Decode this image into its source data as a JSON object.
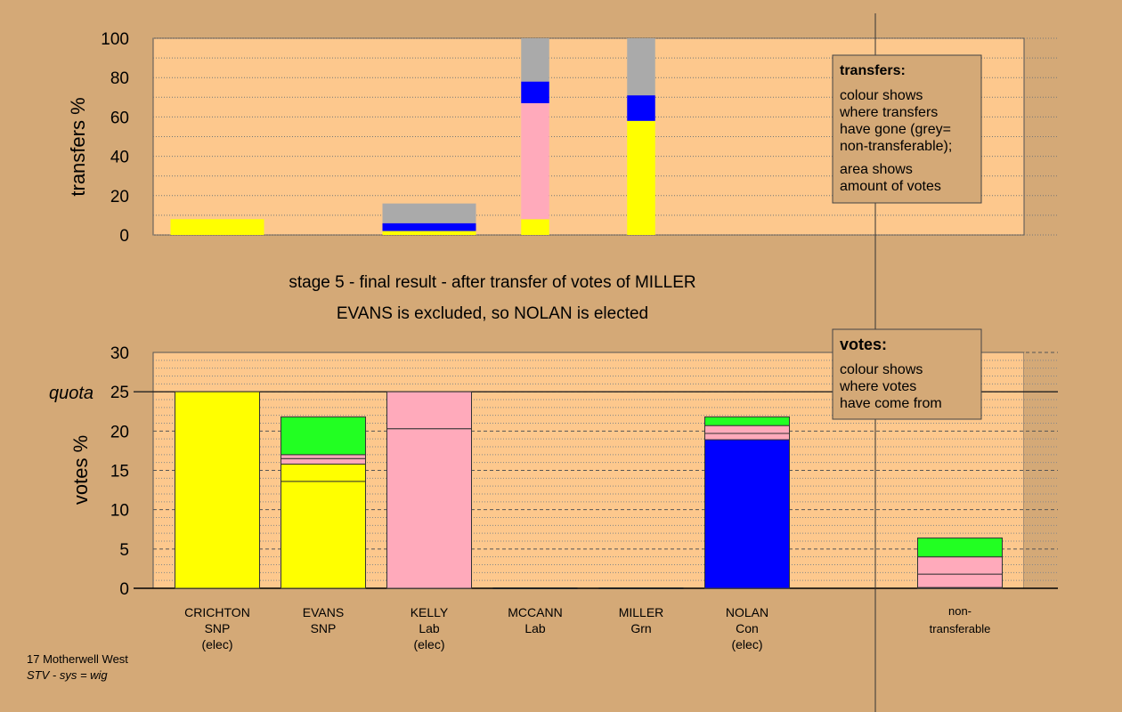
{
  "region": "17 Motherwell West",
  "method": "STV - sys = wig",
  "stage_title": "stage 5 - final result - after transfer of votes of MILLER",
  "outcome": "EVANS is excluded, so NOLAN is elected",
  "colors": {
    "background": "#d4a977",
    "plot_area": "#fdc88d",
    "SNP": "#ffff00",
    "Lab": "#ffaabb",
    "Con": "#0000ff",
    "Grn": "#22ff22",
    "non_transferable": "#aaaaaa"
  },
  "transfers_legend": {
    "title": "transfers:",
    "line1": [
      "colour shows",
      "where transfers",
      "have gone (grey=",
      "non-transferable);"
    ],
    "line2": [
      "area shows",
      "amount of votes"
    ]
  },
  "votes_legend": {
    "title": "votes:",
    "lines": [
      "colour shows",
      "where votes",
      "have come from"
    ]
  },
  "chart_data": [
    {
      "type": "bar",
      "title": "",
      "ylabel": "transfers %",
      "ylim": [
        0,
        100
      ],
      "yticks": [
        0,
        20,
        40,
        60,
        80,
        100
      ],
      "grid": true,
      "categories": [
        "CRICHTON",
        "EVANS",
        "KELLY",
        "MCCANN",
        "MILLER",
        "NOLAN"
      ],
      "bars": [
        {
          "category": "CRICHTON",
          "width_pct": 100,
          "segments": [
            {
              "party": "SNP",
              "value": 8
            }
          ]
        },
        {
          "category": "EVANS",
          "width_pct": 0,
          "segments": []
        },
        {
          "category": "KELLY",
          "width_pct": 100,
          "segments": [
            {
              "party": "SNP",
              "value": 2
            },
            {
              "party": "Con",
              "value": 4
            },
            {
              "party": "non_transferable",
              "value": 10
            }
          ]
        },
        {
          "category": "MCCANN",
          "width_pct": 30,
          "segments": [
            {
              "party": "SNP",
              "value": 8
            },
            {
              "party": "Lab",
              "value": 59
            },
            {
              "party": "Con",
              "value": 11
            },
            {
              "party": "non_transferable",
              "value": 22
            }
          ]
        },
        {
          "category": "MILLER",
          "width_pct": 30,
          "segments": [
            {
              "party": "SNP",
              "value": 58
            },
            {
              "party": "Con",
              "value": 13
            },
            {
              "party": "non_transferable",
              "value": 29
            }
          ]
        },
        {
          "category": "NOLAN",
          "width_pct": 0,
          "segments": []
        }
      ]
    },
    {
      "type": "bar",
      "title": "",
      "ylabel": "votes %",
      "ylim": [
        0,
        30
      ],
      "yticks": [
        0,
        5,
        10,
        15,
        20,
        25,
        30
      ],
      "quota": 25,
      "quota_label": "quota",
      "grid": true,
      "candidates": [
        {
          "name": "CRICHTON",
          "party": "SNP",
          "status": "(elec)",
          "color": "#ffff00",
          "segments": [
            {
              "party": "SNP",
              "value": 25
            }
          ]
        },
        {
          "name": "EVANS",
          "party": "SNP",
          "status": "",
          "color": "#ffff00",
          "segments": [
            {
              "party": "SNP",
              "value": 13.6
            },
            {
              "party": "SNP",
              "value": 2.2
            },
            {
              "party": "Lab",
              "value": 0.7
            },
            {
              "party": "Lab",
              "value": 0.5
            },
            {
              "party": "Grn",
              "value": 4.8
            }
          ]
        },
        {
          "name": "KELLY",
          "party": "Lab",
          "status": "(elec)",
          "color": "#ffaabb",
          "segments": [
            {
              "party": "Lab",
              "value": 20.3
            },
            {
              "party": "Lab",
              "value": 4.7
            }
          ]
        },
        {
          "name": "MCCANN",
          "party": "Lab",
          "status": "",
          "color": "#ffaabb",
          "segments": []
        },
        {
          "name": "MILLER",
          "party": "Grn",
          "status": "",
          "color": "#22ff22",
          "segments": []
        },
        {
          "name": "NOLAN",
          "party": "Con",
          "status": "(elec)",
          "color": "#0000ff",
          "segments": [
            {
              "party": "Con",
              "value": 18.9
            },
            {
              "party": "Lab",
              "value": 0.8
            },
            {
              "party": "Lab",
              "value": 1.0
            },
            {
              "party": "Grn",
              "value": 1.1
            }
          ]
        }
      ],
      "non_transferable": {
        "label_lines": [
          "non-",
          "transferable"
        ],
        "segments": [
          {
            "party": "Lab",
            "value": 0.1
          },
          {
            "party": "Lab",
            "value": 1.7
          },
          {
            "party": "Lab",
            "value": 2.2
          },
          {
            "party": "Grn",
            "value": 2.4
          }
        ]
      }
    }
  ]
}
